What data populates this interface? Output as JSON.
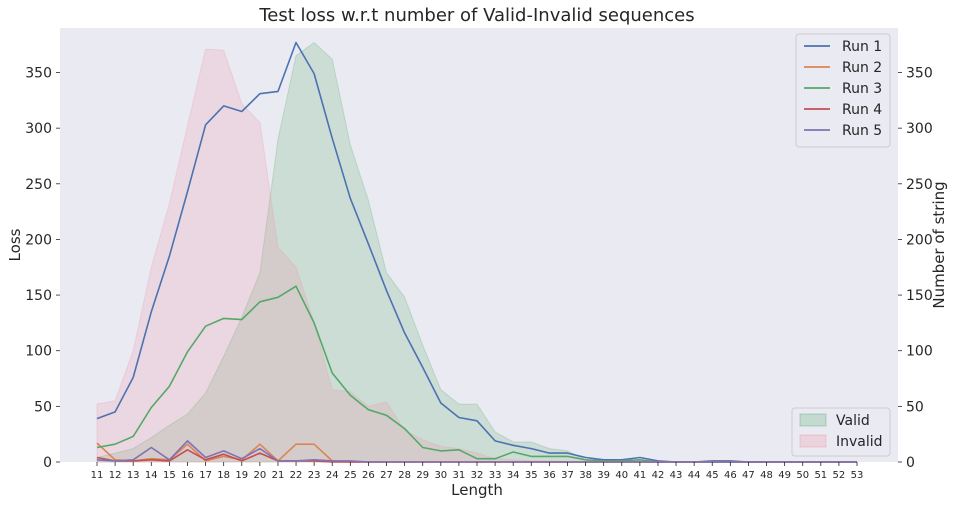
{
  "chart_data": {
    "type": "line",
    "title": "Test loss w.r.t number of Valid-Invalid sequences",
    "xlabel": "Length",
    "ylabel": "Loss",
    "y2label": "Number of string",
    "categories": [
      "11",
      "12",
      "13",
      "14",
      "15",
      "16",
      "17",
      "18",
      "19",
      "20",
      "21",
      "22",
      "23",
      "24",
      "25",
      "26",
      "27",
      "28",
      "29",
      "30",
      "31",
      "32",
      "33",
      "34",
      "35",
      "36",
      "37",
      "38",
      "39",
      "40",
      "41",
      "42",
      "43",
      "44",
      "45",
      "46",
      "47",
      "48",
      "49",
      "50",
      "51",
      "52",
      "53"
    ],
    "ylim": [
      0,
      390
    ],
    "y2lim": [
      0,
      390
    ],
    "yticks": [
      0,
      50,
      100,
      150,
      200,
      250,
      300,
      350
    ],
    "grid": false,
    "colors": {
      "plot_bg": "#eaeaf2",
      "valid_fill": "#55a868",
      "invalid_fill": "#ee8ea0"
    },
    "series": [
      {
        "name": "Run 1",
        "color": "#4c72b0",
        "values": [
          39,
          45,
          76,
          135,
          185,
          243,
          303,
          320,
          315,
          331,
          333,
          377,
          349,
          291,
          237,
          196,
          154,
          116,
          85,
          53,
          40,
          37,
          19,
          15,
          12,
          8,
          8,
          4,
          2,
          2,
          4,
          1,
          0,
          0,
          1,
          1,
          0,
          0,
          0,
          0,
          0,
          0,
          0
        ]
      },
      {
        "name": "Run 2",
        "color": "#dd8452",
        "values": [
          17,
          2,
          1,
          3,
          2,
          16,
          1,
          5,
          2,
          16,
          1,
          16,
          16,
          1,
          0,
          0,
          0,
          0,
          0,
          0,
          0,
          0,
          0,
          0,
          0,
          0,
          0,
          0,
          0,
          0,
          0,
          0,
          0,
          0,
          0,
          0,
          0,
          0,
          0,
          0,
          0,
          0,
          0
        ]
      },
      {
        "name": "Run 3",
        "color": "#55a868",
        "values": [
          13,
          16,
          23,
          49,
          68,
          99,
          122,
          129,
          128,
          144,
          148,
          158,
          125,
          80,
          60,
          47,
          42,
          30,
          13,
          10,
          11,
          3,
          3,
          9,
          5,
          5,
          5,
          2,
          1,
          1,
          2,
          0,
          0,
          0,
          0,
          0,
          0,
          0,
          0,
          0,
          0,
          0,
          0
        ]
      },
      {
        "name": "Run 4",
        "color": "#c44e52",
        "values": [
          4,
          1,
          1,
          2,
          1,
          11,
          2,
          7,
          1,
          8,
          1,
          1,
          1,
          0,
          0,
          0,
          0,
          0,
          0,
          0,
          0,
          0,
          0,
          0,
          0,
          0,
          0,
          0,
          0,
          0,
          0,
          0,
          0,
          0,
          0,
          0,
          0,
          0,
          0,
          0,
          0,
          0,
          0
        ]
      },
      {
        "name": "Run 5",
        "color": "#8172b3",
        "values": [
          2,
          1,
          2,
          13,
          2,
          19,
          4,
          10,
          3,
          12,
          1,
          1,
          2,
          1,
          1,
          0,
          0,
          0,
          0,
          0,
          0,
          0,
          0,
          0,
          0,
          0,
          0,
          0,
          0,
          0,
          0,
          0,
          0,
          0,
          0,
          0,
          0,
          0,
          0,
          0,
          0,
          0,
          0
        ]
      }
    ],
    "areas": [
      {
        "name": "Valid",
        "values": [
          4,
          8,
          12,
          22,
          33,
          43,
          62,
          95,
          130,
          170,
          290,
          365,
          377,
          362,
          285,
          235,
          170,
          148,
          105,
          65,
          52,
          52,
          27,
          18,
          18,
          12,
          10,
          2,
          1,
          1,
          1,
          0,
          0,
          0,
          1,
          0,
          0,
          0,
          0,
          0,
          0,
          0,
          0
        ]
      },
      {
        "name": "Invalid",
        "values": [
          52,
          55,
          100,
          175,
          232,
          302,
          371,
          370,
          322,
          305,
          193,
          175,
          125,
          65,
          63,
          50,
          54,
          28,
          20,
          14,
          12,
          8,
          3,
          2,
          1,
          1,
          0,
          0,
          0,
          0,
          0,
          0,
          0,
          0,
          0,
          0,
          0,
          0,
          0,
          0,
          0,
          0,
          0
        ]
      }
    ],
    "legend": {
      "lines_position": "top-right",
      "areas_position": "bottom-right"
    }
  }
}
